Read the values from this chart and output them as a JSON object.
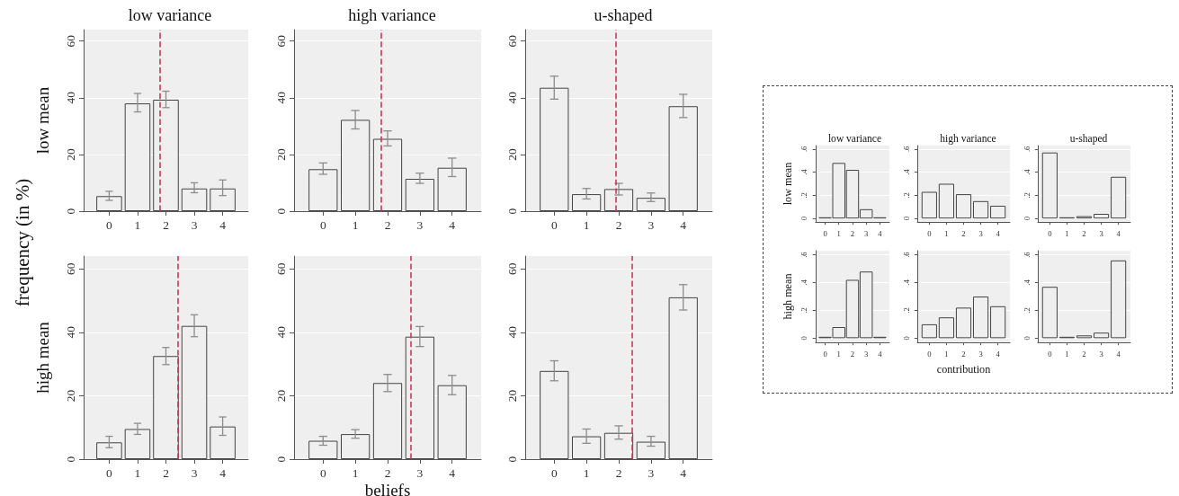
{
  "chart_data": [
    {
      "type": "bar",
      "title": "low variance",
      "ylabel": "low mean",
      "annotations": [
        "frequency (in %)"
      ],
      "x": [
        0,
        1,
        2,
        3,
        4
      ],
      "values": [
        5.3,
        38,
        39.3,
        8,
        8
      ],
      "errors": [
        [
          3.8,
          7
        ],
        [
          35,
          41.5
        ],
        [
          36.5,
          42.3
        ],
        [
          6.5,
          10
        ],
        [
          5.5,
          11
        ]
      ],
      "color": "#efefef",
      "xlim": [
        -0.9,
        4.9
      ],
      "xticks": [
        0,
        1,
        2,
        3,
        4
      ],
      "ylim": [
        0,
        64
      ],
      "yticks": [
        0,
        20,
        40,
        60
      ],
      "grid": "y",
      "ref_lines": [
        {
          "axis": "x",
          "value": 1.79,
          "color": "#c8385a",
          "line_style": "dashed"
        }
      ]
    },
    {
      "type": "bar",
      "title": "high variance",
      "x": [
        0,
        1,
        2,
        3,
        4
      ],
      "values": [
        14.8,
        32.2,
        25.5,
        11.4,
        15.3
      ],
      "errors": [
        [
          13,
          17
        ],
        [
          29,
          35.5
        ],
        [
          23,
          28.3
        ],
        [
          9.8,
          13.4
        ],
        [
          12.2,
          18.7
        ]
      ],
      "color": "#efefef",
      "xlim": [
        -0.9,
        4.9
      ],
      "xticks": [
        0,
        1,
        2,
        3,
        4
      ],
      "ylim": [
        0,
        64
      ],
      "yticks": [
        0,
        20,
        40,
        60
      ],
      "grid": "y",
      "ref_lines": [
        {
          "axis": "x",
          "value": 1.8,
          "color": "#c8385a",
          "line_style": "dashed"
        }
      ]
    },
    {
      "type": "bar",
      "title": "u-shaped",
      "x": [
        0,
        1,
        2,
        3,
        4
      ],
      "values": [
        43.5,
        6,
        7.8,
        4.7,
        37
      ],
      "errors": [
        [
          39.5,
          47.6
        ],
        [
          4.3,
          8
        ],
        [
          5.7,
          9.8
        ],
        [
          3.4,
          6.4
        ],
        [
          33,
          41.2
        ]
      ],
      "color": "#efefef",
      "xlim": [
        -0.9,
        4.9
      ],
      "xticks": [
        0,
        1,
        2,
        3,
        4
      ],
      "ylim": [
        0,
        64
      ],
      "yticks": [
        0,
        20,
        40,
        60
      ],
      "grid": "y",
      "ref_lines": [
        {
          "axis": "x",
          "value": 1.91,
          "color": "#c8385a",
          "line_style": "dashed"
        }
      ]
    },
    {
      "type": "bar",
      "ylabel": "high mean",
      "x": [
        0,
        1,
        2,
        3,
        4
      ],
      "values": [
        5.3,
        9.5,
        32.5,
        42,
        10.3
      ],
      "errors": [
        [
          3.6,
          7.2
        ],
        [
          7.8,
          11.3
        ],
        [
          29.8,
          35.2
        ],
        [
          38.6,
          45.5
        ],
        [
          7.5,
          13.3
        ]
      ],
      "color": "#efefef",
      "xlim": [
        -0.9,
        4.9
      ],
      "xticks": [
        0,
        1,
        2,
        3,
        4
      ],
      "ylim": [
        0,
        64
      ],
      "yticks": [
        0,
        20,
        40,
        60
      ],
      "grid": "y",
      "ref_lines": [
        {
          "axis": "x",
          "value": 2.41,
          "color": "#c8385a",
          "line_style": "dashed"
        }
      ]
    },
    {
      "type": "bar",
      "xlabel": "beliefs",
      "x": [
        0,
        1,
        2,
        3,
        4
      ],
      "values": [
        5.8,
        7.9,
        24,
        38.6,
        23.3
      ],
      "errors": [
        [
          4.4,
          7.2
        ],
        [
          6.6,
          9.3
        ],
        [
          21.3,
          26.7
        ],
        [
          35.5,
          41.8
        ],
        [
          20.3,
          26.4
        ]
      ],
      "color": "#efefef",
      "xlim": [
        -0.9,
        4.9
      ],
      "xticks": [
        0,
        1,
        2,
        3,
        4
      ],
      "ylim": [
        0,
        64
      ],
      "yticks": [
        0,
        20,
        40,
        60
      ],
      "grid": "y",
      "ref_lines": [
        {
          "axis": "x",
          "value": 2.71,
          "color": "#c8385a",
          "line_style": "dashed"
        }
      ]
    },
    {
      "type": "bar",
      "x": [
        0,
        1,
        2,
        3,
        4
      ],
      "values": [
        27.8,
        7.2,
        8.3,
        5.5,
        51
      ],
      "errors": [
        [
          24.7,
          31
        ],
        [
          5,
          9.5
        ],
        [
          6.3,
          10.5
        ],
        [
          4.1,
          7.2
        ],
        [
          47,
          55
        ]
      ],
      "color": "#efefef",
      "xlim": [
        -0.9,
        4.9
      ],
      "xticks": [
        0,
        1,
        2,
        3,
        4
      ],
      "ylim": [
        0,
        64
      ],
      "yticks": [
        0,
        20,
        40,
        60
      ],
      "grid": "y",
      "ref_lines": [
        {
          "axis": "x",
          "value": 2.4,
          "color": "#c8385a",
          "line_style": "dashed"
        }
      ]
    },
    {
      "type": "bar",
      "title": "low variance",
      "ylabel": "low mean",
      "x": [
        0,
        1,
        2,
        3,
        4
      ],
      "values": [
        0.01,
        0.48,
        0.42,
        0.08,
        0.01
      ],
      "color": "#efefef",
      "xlim": [
        -0.7,
        4.7
      ],
      "xticks": [
        0,
        1,
        2,
        3,
        4
      ],
      "ylim": [
        -0.03,
        0.63
      ],
      "yticks": [
        0,
        {
          "value": 0.2,
          "label": ".2"
        },
        {
          "value": 0.4,
          "label": ".4"
        },
        {
          "value": 0.6,
          "label": ".6"
        }
      ],
      "grid": "y"
    },
    {
      "type": "bar",
      "title": "high variance",
      "x": [
        0,
        1,
        2,
        3,
        4
      ],
      "values": [
        0.23,
        0.3,
        0.21,
        0.15,
        0.11
      ],
      "color": "#efefef",
      "xlim": [
        -0.7,
        4.7
      ],
      "xticks": [
        0,
        1,
        2,
        3,
        4
      ],
      "ylim": [
        -0.03,
        0.63
      ],
      "yticks": [
        0,
        {
          "value": 0.2,
          "label": ".2"
        },
        {
          "value": 0.4,
          "label": ".4"
        },
        {
          "value": 0.6,
          "label": ".6"
        }
      ],
      "grid": "y"
    },
    {
      "type": "bar",
      "title": "u-shaped",
      "x": [
        0,
        1,
        2,
        3,
        4
      ],
      "values": [
        0.57,
        0.01,
        0.02,
        0.04,
        0.36
      ],
      "color": "#efefef",
      "xlim": [
        -0.7,
        4.7
      ],
      "xticks": [
        0,
        1,
        2,
        3,
        4
      ],
      "ylim": [
        -0.03,
        0.63
      ],
      "yticks": [
        0,
        {
          "value": 0.2,
          "label": ".2"
        },
        {
          "value": 0.4,
          "label": ".4"
        },
        {
          "value": 0.6,
          "label": ".6"
        }
      ],
      "grid": "y"
    },
    {
      "type": "bar",
      "ylabel": "high mean",
      "x": [
        0,
        1,
        2,
        3,
        4
      ],
      "values": [
        0.01,
        0.08,
        0.42,
        0.48,
        0.01
      ],
      "color": "#efefef",
      "xlim": [
        -0.7,
        4.7
      ],
      "xticks": [
        0,
        1,
        2,
        3,
        4
      ],
      "ylim": [
        -0.03,
        0.63
      ],
      "yticks": [
        0,
        {
          "value": 0.2,
          "label": ".2"
        },
        {
          "value": 0.4,
          "label": ".4"
        },
        {
          "value": 0.6,
          "label": ".6"
        }
      ],
      "grid": "y"
    },
    {
      "type": "bar",
      "xlabel": "contribution",
      "x": [
        0,
        1,
        2,
        3,
        4
      ],
      "values": [
        0.1,
        0.15,
        0.22,
        0.3,
        0.23
      ],
      "color": "#efefef",
      "xlim": [
        -0.7,
        4.7
      ],
      "xticks": [
        0,
        1,
        2,
        3,
        4
      ],
      "ylim": [
        -0.03,
        0.63
      ],
      "yticks": [
        0,
        {
          "value": 0.2,
          "label": ".2"
        },
        {
          "value": 0.4,
          "label": ".4"
        },
        {
          "value": 0.6,
          "label": ".6"
        }
      ],
      "grid": "y"
    },
    {
      "type": "bar",
      "x": [
        0,
        1,
        2,
        3,
        4
      ],
      "values": [
        0.37,
        0.01,
        0.02,
        0.04,
        0.56
      ],
      "color": "#efefef",
      "xlim": [
        -0.7,
        4.7
      ],
      "xticks": [
        0,
        1,
        2,
        3,
        4
      ],
      "ylim": [
        -0.03,
        0.63
      ],
      "yticks": [
        0,
        {
          "value": 0.2,
          "label": ".2"
        },
        {
          "value": 0.4,
          "label": ".4"
        },
        {
          "value": 0.6,
          "label": ".6"
        }
      ],
      "grid": "y"
    }
  ]
}
